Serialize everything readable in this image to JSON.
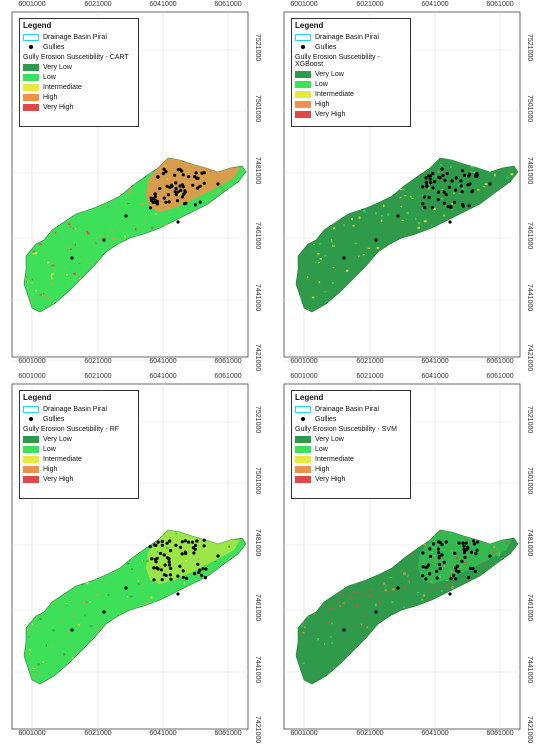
{
  "legend": {
    "title": "Legend",
    "basin": "Drainage Basin Piraí",
    "gullies": "Gullies",
    "classes": [
      "Very Low",
      "Low",
      "Intermediate",
      "High",
      "Very High"
    ],
    "class_colors": [
      "#2e9a4a",
      "#3ee05a",
      "#e6ea3a",
      "#f0914a",
      "#e04848"
    ],
    "basin_color": "#28d8e8"
  },
  "x_ticks": [
    "6001000",
    "6021000",
    "6041000",
    "6061000"
  ],
  "y_ticks": [
    "7521000",
    "7501000",
    "7481000",
    "7461000",
    "7441000",
    "7421000"
  ],
  "panels": [
    {
      "subtitle": "Gully Erosion Suscetibility - CART"
    },
    {
      "subtitle": "Gully Erosion Suscetibility - XGBoost"
    },
    {
      "subtitle": "Gully Erosion Suscetibility - RF"
    },
    {
      "subtitle": "Gully Erosion Suscetibility - SVM"
    }
  ]
}
